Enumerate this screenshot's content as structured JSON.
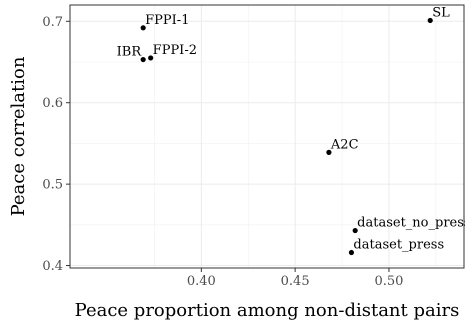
{
  "chart_data": {
    "type": "scatter",
    "xlabel": "Peace proportion among non-distant pairs",
    "ylabel": "Peace correlation",
    "xlim": [
      0.33,
      0.54
    ],
    "ylim": [
      0.397,
      0.72
    ],
    "x_ticks": [
      0.4,
      0.45,
      0.5
    ],
    "x_tick_labels": [
      "0.40",
      "0.45",
      "0.50"
    ],
    "y_ticks": [
      0.4,
      0.5,
      0.6,
      0.7
    ],
    "y_tick_labels": [
      "0.4",
      "0.5",
      "0.6",
      "0.7"
    ],
    "grid": true,
    "legend": "none",
    "point_color": "#000000",
    "points": [
      {
        "label": "FPPI-1",
        "x": 0.369,
        "y": 0.692,
        "label_pos": "right"
      },
      {
        "label": "IBR",
        "x": 0.369,
        "y": 0.653,
        "label_pos": "left"
      },
      {
        "label": "FPPI-2",
        "x": 0.373,
        "y": 0.655,
        "label_pos": "right"
      },
      {
        "label": "SL",
        "x": 0.522,
        "y": 0.701,
        "label_pos": "right"
      },
      {
        "label": "A2C",
        "x": 0.468,
        "y": 0.539,
        "label_pos": "right"
      },
      {
        "label": "dataset_no_press",
        "x": 0.482,
        "y": 0.443,
        "label_pos": "right"
      },
      {
        "label": "dataset_press",
        "x": 0.48,
        "y": 0.416,
        "label_pos": "right"
      }
    ]
  }
}
